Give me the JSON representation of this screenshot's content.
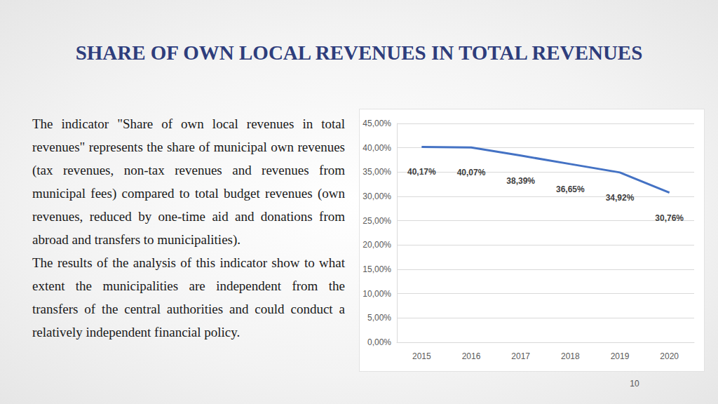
{
  "title": "SHARE OF OWN LOCAL REVENUES IN TOTAL REVENUES",
  "paragraphs": [
    "The indicator \"Share of own local revenues in total revenues\" represents the share of municipal own revenues (tax revenues, non-tax revenues and revenues from municipal fees) compared to total budget revenues (own revenues, reduced by one-time aid and donations from abroad and transfers to municipalities).",
    "The results of the analysis of this indicator show to what extent the municipalities are independent from the transfers of the central authorities and could conduct a relatively independent financial policy."
  ],
  "page_number": 10,
  "chart_data": {
    "type": "line",
    "categories": [
      "2015",
      "2016",
      "2017",
      "2018",
      "2019",
      "2020"
    ],
    "values": [
      40.17,
      40.07,
      38.39,
      36.65,
      34.92,
      30.76
    ],
    "value_labels": [
      "40,17%",
      "40,07%",
      "38,39%",
      "36,65%",
      "34,92%",
      "30,76%"
    ],
    "color": "#4472c4",
    "ylim": [
      0,
      45
    ],
    "yticks": [
      {
        "value": 0,
        "label": "0,00%"
      },
      {
        "value": 5,
        "label": "5,00%"
      },
      {
        "value": 10,
        "label": "10,00%"
      },
      {
        "value": 15,
        "label": "15,00%"
      },
      {
        "value": 20,
        "label": "20,00%"
      },
      {
        "value": 25,
        "label": "25,00%"
      },
      {
        "value": 30,
        "label": "30,00%"
      },
      {
        "value": 35,
        "label": "35,00%"
      },
      {
        "value": 40,
        "label": "40,00%"
      },
      {
        "value": 45,
        "label": "45,00%"
      }
    ],
    "grid": true,
    "data_labels": true
  }
}
